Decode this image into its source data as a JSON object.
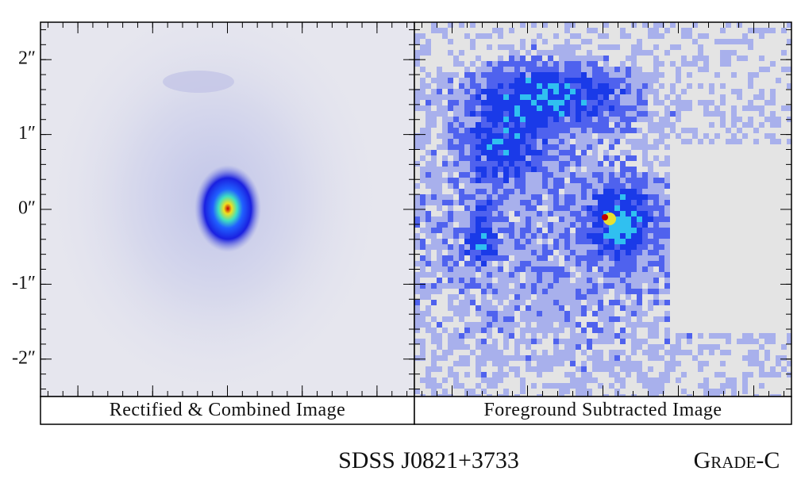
{
  "chart_data": {
    "type": "image",
    "title": "SDSS J0821+3733",
    "grade": "Grade-C",
    "grade_color": "#5b8a2b",
    "panels": [
      {
        "label": "Rectified & Combined Image",
        "style": "combined"
      },
      {
        "label": "Foreground Subtracted Image",
        "style": "subtracted"
      }
    ],
    "xlim": [
      -2.5,
      2.5
    ],
    "ylim": [
      -2.5,
      2.5
    ],
    "xticks": [
      -2,
      -1,
      0,
      1,
      2
    ],
    "yticks": [
      {
        "value": 2,
        "label": "2″"
      },
      {
        "value": 1,
        "label": "1″"
      },
      {
        "value": 0,
        "label": "0″"
      },
      {
        "value": -1,
        "label": "-1″"
      },
      {
        "value": -2,
        "label": "-2″"
      }
    ],
    "minor_ticks": [
      -2.4,
      -2.2,
      -2.0,
      -1.8,
      -1.6,
      -1.4,
      -1.2,
      -1.0,
      -0.8,
      -0.6,
      -0.4,
      -0.2,
      0.0,
      0.2,
      0.4,
      0.6,
      0.8,
      1.0,
      1.2,
      1.4,
      1.6,
      1.8,
      2.0,
      2.2,
      2.4
    ]
  }
}
